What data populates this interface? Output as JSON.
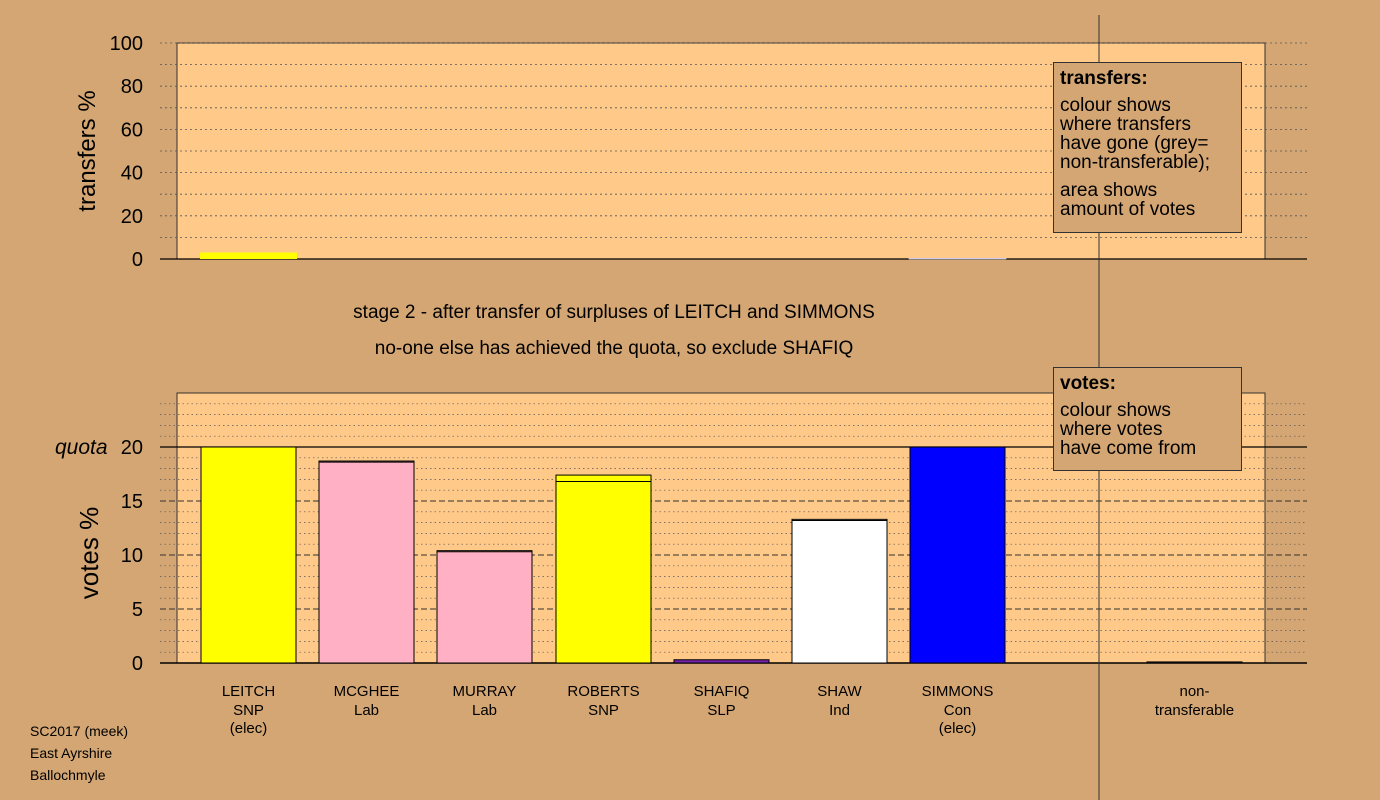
{
  "chart_data": {
    "type": "bar",
    "title_lines": [
      "stage 2 - after transfer of surpluses of LEITCH and SIMMONS",
      "no-one else has achieved the quota, so exclude SHAFIQ"
    ],
    "candidates": [
      {
        "name": "LEITCH",
        "party": "SNP",
        "note": "(elec)",
        "color": "#ffff00",
        "votes": 20.0,
        "prev_votes": 20.0,
        "transfer": 3.0,
        "transfer_color": "#ffff00"
      },
      {
        "name": "MCGHEE",
        "party": "Lab",
        "note": "",
        "color": "#ffb0c4",
        "votes": 18.7,
        "prev_votes": 18.6,
        "transfer": 0,
        "transfer_color": "#ffb0c4"
      },
      {
        "name": "MURRAY",
        "party": "Lab",
        "note": "",
        "color": "#ffb0c4",
        "votes": 10.4,
        "prev_votes": 10.3,
        "transfer": 0,
        "transfer_color": "#ffb0c4"
      },
      {
        "name": "ROBERTS",
        "party": "SNP",
        "note": "",
        "color": "#ffff00",
        "votes": 17.4,
        "prev_votes": 16.8,
        "transfer": 0,
        "transfer_color": "#ffff00"
      },
      {
        "name": "SHAFIQ",
        "party": "SLP",
        "note": "",
        "color": "#7722aa",
        "votes": 0.3,
        "prev_votes": 0.3,
        "transfer": 0,
        "transfer_color": "#7722aa"
      },
      {
        "name": "SHAW",
        "party": "Ind",
        "note": "",
        "color": "#ffffff",
        "votes": 13.3,
        "prev_votes": 13.2,
        "transfer": 0,
        "transfer_color": "#ffffff"
      },
      {
        "name": "SIMMONS",
        "party": "Con",
        "note": "(elec)",
        "color": "#0000ff",
        "votes": 20.0,
        "prev_votes": 20.0,
        "transfer": 0.3,
        "transfer_color": "#0000ff"
      }
    ],
    "nontransferable": {
      "label_lines": [
        "non-",
        "transferable"
      ],
      "votes": 0.1,
      "color": "#888888"
    },
    "top_axis": {
      "label": "transfers %",
      "ylim": [
        0,
        100
      ],
      "ticks": [
        0,
        20,
        40,
        60,
        80,
        100
      ]
    },
    "bottom_axis": {
      "label": "votes %",
      "ylim": [
        0,
        25
      ],
      "ticks": [
        0,
        5,
        10,
        15,
        20
      ]
    },
    "quota": {
      "label": "quota",
      "value": 20
    },
    "colors": {
      "background": "#d4a673",
      "plot_area": "#ffc98a"
    }
  },
  "legend_transfers": {
    "title": "transfers:",
    "lines": [
      "colour shows",
      "where transfers",
      "have gone (grey=",
      "non-transferable);"
    ],
    "lines2": [
      "area shows",
      "amount of votes"
    ]
  },
  "legend_votes": {
    "title": "votes:",
    "lines": [
      "colour shows",
      "where votes",
      "have come from"
    ]
  },
  "footer": {
    "line1": "SC2017 (meek)",
    "line2": "East Ayrshire",
    "line3": "Ballochmyle"
  }
}
